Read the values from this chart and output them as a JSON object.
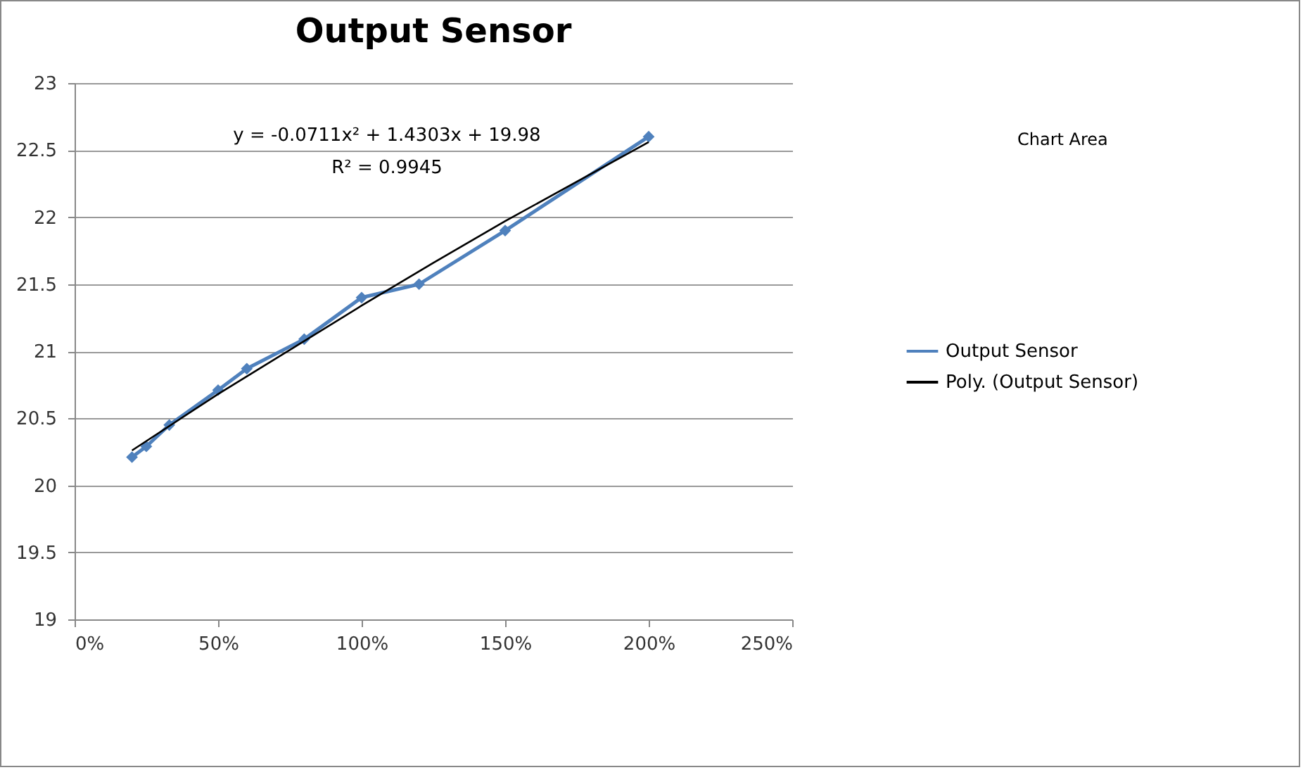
{
  "chart_data": {
    "type": "line",
    "title": "Output Sensor",
    "xlim": [
      0,
      250
    ],
    "xticks": [
      {
        "value": 0,
        "label": "0%"
      },
      {
        "value": 50,
        "label": "50%"
      },
      {
        "value": 100,
        "label": "100%"
      },
      {
        "value": 150,
        "label": "150%"
      },
      {
        "value": 200,
        "label": "200%"
      },
      {
        "value": 250,
        "label": "250%"
      }
    ],
    "ylim": [
      19,
      23
    ],
    "yticks": [
      19,
      19.5,
      20,
      20.5,
      21,
      21.5,
      22,
      22.5,
      23
    ],
    "grid": "y",
    "legend": "right",
    "annotations": [
      "y = -0.0711x² + 1.4303x + 19.98",
      "R² = 0.9945",
      "Chart Area"
    ],
    "series": [
      {
        "name": "Output Sensor",
        "color": "#4f81bd",
        "marker": "diamond",
        "x": [
          20,
          25,
          33,
          50,
          60,
          80,
          100,
          120,
          150,
          200
        ],
        "values": [
          20.21,
          20.29,
          20.45,
          20.71,
          20.87,
          21.09,
          21.4,
          21.5,
          21.9,
          22.6
        ]
      },
      {
        "name": "Poly. (Output Sensor)",
        "color": "#000000",
        "marker": "none",
        "x": [
          20,
          50,
          75,
          100,
          125,
          150,
          200
        ],
        "values": [
          20.26,
          20.68,
          21.01,
          21.34,
          21.66,
          21.97,
          22.56
        ]
      }
    ]
  }
}
